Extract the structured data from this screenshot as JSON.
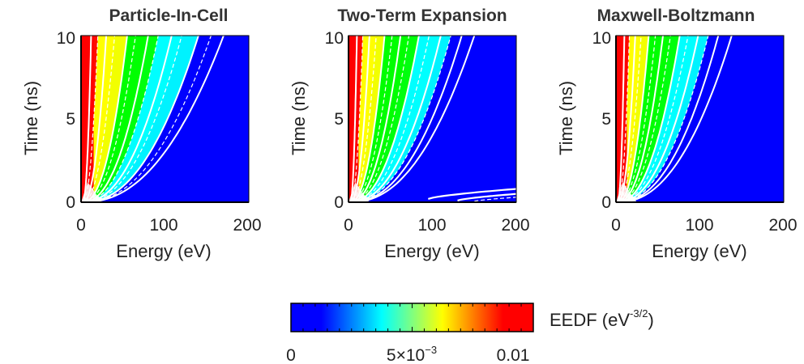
{
  "chart_data": [
    {
      "type": "heatmap",
      "title": "Particle-In-Cell",
      "xlabel": "Energy (eV)",
      "ylabel": "Time (ns)",
      "xlim": [
        0,
        200
      ],
      "ylim": [
        0,
        10
      ],
      "xticks": [
        "0",
        "100",
        "200"
      ],
      "yticks": [
        "0",
        "5",
        "10"
      ],
      "high_band_energy_eV": [
        0,
        15
      ],
      "contours": [
        {
          "style": "solid",
          "energy_at_t10_eV": 12
        },
        {
          "style": "dashed",
          "energy_at_t10_eV": 20
        },
        {
          "style": "solid",
          "energy_at_t10_eV": 30
        },
        {
          "style": "dashed",
          "energy_at_t10_eV": 40
        },
        {
          "style": "solid",
          "energy_at_t10_eV": 55
        },
        {
          "style": "dashed",
          "energy_at_t10_eV": 65
        },
        {
          "style": "solid",
          "energy_at_t10_eV": 80
        },
        {
          "style": "dashed",
          "energy_at_t10_eV": 92
        },
        {
          "style": "solid",
          "energy_at_t10_eV": 108
        },
        {
          "style": "dashed",
          "energy_at_t10_eV": 120
        },
        {
          "style": "solid",
          "energy_at_t10_eV": 140
        },
        {
          "style": "dashed",
          "energy_at_t10_eV": 155
        },
        {
          "style": "solid",
          "energy_at_t10_eV": 170
        }
      ]
    },
    {
      "type": "heatmap",
      "title": "Two-Term Expansion",
      "xlabel": "Energy (eV)",
      "ylabel": "Time (ns)",
      "xlim": [
        0,
        200
      ],
      "ylim": [
        0,
        10
      ],
      "xticks": [
        "0",
        "100",
        "200"
      ],
      "yticks": [
        "0",
        "5",
        "10"
      ],
      "high_band_energy_eV": [
        0,
        12
      ],
      "contours": [
        {
          "style": "solid",
          "energy_at_t10_eV": 10
        },
        {
          "style": "dashed",
          "energy_at_t10_eV": 17
        },
        {
          "style": "solid",
          "energy_at_t10_eV": 25
        },
        {
          "style": "dashed",
          "energy_at_t10_eV": 33
        },
        {
          "style": "solid",
          "energy_at_t10_eV": 43
        },
        {
          "style": "dashed",
          "energy_at_t10_eV": 52
        },
        {
          "style": "solid",
          "energy_at_t10_eV": 62
        },
        {
          "style": "dashed",
          "energy_at_t10_eV": 72
        },
        {
          "style": "solid",
          "energy_at_t10_eV": 84
        },
        {
          "style": "dashed",
          "energy_at_t10_eV": 96
        },
        {
          "style": "solid",
          "energy_at_t10_eV": 110
        },
        {
          "style": "dashed",
          "energy_at_t10_eV": 122
        },
        {
          "style": "solid",
          "energy_at_t10_eV": 135
        },
        {
          "style": "solid",
          "energy_at_t10_eV": 150
        }
      ],
      "extra_contours": [
        {
          "style": "solid",
          "energy_range_eV": [
            95,
            200
          ],
          "time_range_ns": [
            0.2,
            0.8
          ]
        },
        {
          "style": "solid",
          "energy_range_eV": [
            130,
            200
          ],
          "time_range_ns": [
            0.1,
            0.5
          ]
        },
        {
          "style": "dashed",
          "energy_range_eV": [
            150,
            200
          ],
          "time_range_ns": [
            0.05,
            0.3
          ]
        }
      ]
    },
    {
      "type": "heatmap",
      "title": "Maxwell-Boltzmann",
      "xlabel": "Energy (eV)",
      "ylabel": "Time (ns)",
      "xlim": [
        0,
        200
      ],
      "ylim": [
        0,
        10
      ],
      "xticks": [
        "0",
        "100",
        "200"
      ],
      "yticks": [
        "0",
        "5",
        "10"
      ],
      "high_band_energy_eV": [
        0,
        13
      ],
      "contours": [
        {
          "style": "solid",
          "energy_at_t10_eV": 10
        },
        {
          "style": "dashed",
          "energy_at_t10_eV": 16
        },
        {
          "style": "solid",
          "energy_at_t10_eV": 23
        },
        {
          "style": "dashed",
          "energy_at_t10_eV": 30
        },
        {
          "style": "solid",
          "energy_at_t10_eV": 39
        },
        {
          "style": "dashed",
          "energy_at_t10_eV": 47
        },
        {
          "style": "solid",
          "energy_at_t10_eV": 56
        },
        {
          "style": "dashed",
          "energy_at_t10_eV": 65
        },
        {
          "style": "solid",
          "energy_at_t10_eV": 76
        },
        {
          "style": "dashed",
          "energy_at_t10_eV": 86
        },
        {
          "style": "solid",
          "energy_at_t10_eV": 98
        },
        {
          "style": "dashed",
          "energy_at_t10_eV": 110
        },
        {
          "style": "solid",
          "energy_at_t10_eV": 122
        },
        {
          "style": "solid",
          "energy_at_t10_eV": 138
        }
      ]
    }
  ],
  "colorbar": {
    "label_text": "EEDF (eV",
    "label_exponent": "-3/2",
    "label_close": ")",
    "range": [
      0,
      0.01
    ],
    "tick_0": "0",
    "tick_mid_mantissa": "5×10",
    "tick_mid_exponent": "−3",
    "tick_max": "0.01",
    "colors": [
      "#0000ff",
      "#00ffff",
      "#00ff00",
      "#ffff00",
      "#ff0000"
    ]
  }
}
